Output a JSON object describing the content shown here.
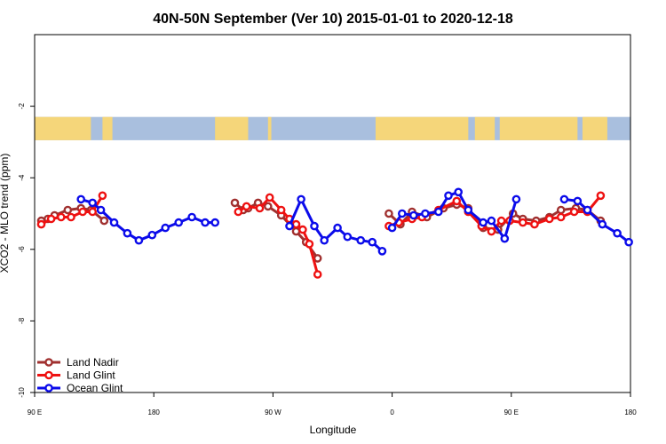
{
  "chart_data": {
    "type": "line",
    "title": "40N-50N September (Ver 10)   2015-01-01 to 2020-12-18",
    "xlabel": "Longitude",
    "ylabel": "XCO2 - MLO trend (ppm)",
    "xlim": [
      90,
      450
    ],
    "ylim": [
      -10,
      0
    ],
    "x_ticks": [
      {
        "value": 90,
        "label": "90 E"
      },
      {
        "value": 162,
        "label": "180"
      },
      {
        "value": 234,
        "label": "90 W"
      },
      {
        "value": 306,
        "label": "0"
      },
      {
        "value": 378,
        "label": "90 E"
      },
      {
        "value": 450,
        "label": "180"
      }
    ],
    "y_ticks": [
      {
        "value": -2,
        "label": "-2"
      },
      {
        "value": -4,
        "label": "-4"
      },
      {
        "value": -6,
        "label": "-6"
      },
      {
        "value": -8,
        "label": "-8"
      },
      {
        "value": -10,
        "label": "-10"
      }
    ],
    "map_band": {
      "y_top": -2.3,
      "y_bottom": -2.95,
      "land_color": "#f5d67a",
      "ocean_color": "#a9bfde"
    },
    "series": [
      {
        "name": "Land Nadir",
        "color": "#a0302f",
        "segments": [
          [
            [
              94,
              -5.2
            ],
            [
              98,
              -5.15
            ],
            [
              102,
              -5.05
            ],
            [
              110,
              -4.9
            ],
            [
              118,
              -4.85
            ],
            [
              124,
              -4.9
            ],
            [
              132,
              -5.2
            ]
          ],
          [
            [
              211,
              -4.7
            ],
            [
              216,
              -4.9
            ],
            [
              219,
              -4.85
            ],
            [
              225,
              -4.7
            ],
            [
              231,
              -4.8
            ],
            [
              239,
              -5.05
            ],
            [
              248,
              -5.5
            ],
            [
              254,
              -5.8
            ],
            [
              261,
              -6.25
            ]
          ],
          [
            [
              304,
              -5.0
            ],
            [
              311,
              -5.3
            ],
            [
              318,
              -4.95
            ],
            [
              327,
              -5.1
            ],
            [
              337,
              -4.85
            ],
            [
              345,
              -4.75
            ],
            [
              352,
              -4.85
            ],
            [
              361,
              -5.4
            ],
            [
              370,
              -5.45
            ],
            [
              379,
              -5.0
            ],
            [
              385,
              -5.15
            ],
            [
              393,
              -5.2
            ],
            [
              401,
              -5.1
            ],
            [
              408,
              -4.9
            ],
            [
              417,
              -4.85
            ],
            [
              424,
              -4.9
            ],
            [
              432,
              -5.2
            ]
          ]
        ]
      },
      {
        "name": "Land Glint",
        "color": "#ee1111",
        "segments": [
          [
            [
              94,
              -5.3
            ],
            [
              100,
              -5.15
            ],
            [
              106,
              -5.1
            ],
            [
              112,
              -5.1
            ],
            [
              119,
              -4.95
            ],
            [
              125,
              -4.95
            ],
            [
              131,
              -4.5
            ]
          ],
          [
            [
              213,
              -4.95
            ],
            [
              218,
              -4.8
            ],
            [
              226,
              -4.85
            ],
            [
              232,
              -4.55
            ],
            [
              239,
              -4.9
            ],
            [
              244,
              -5.15
            ],
            [
              248,
              -5.3
            ],
            [
              252,
              -5.45
            ],
            [
              256,
              -5.85
            ],
            [
              261,
              -6.7
            ]
          ],
          [
            [
              304,
              -5.35
            ],
            [
              310,
              -5.25
            ],
            [
              318,
              -5.15
            ],
            [
              324,
              -5.1
            ],
            [
              334,
              -4.9
            ],
            [
              345,
              -4.65
            ],
            [
              352,
              -4.95
            ],
            [
              360,
              -5.35
            ],
            [
              366,
              -5.5
            ],
            [
              372,
              -5.2
            ],
            [
              377,
              -5.2
            ],
            [
              385,
              -5.25
            ],
            [
              392,
              -5.3
            ],
            [
              401,
              -5.15
            ],
            [
              408,
              -5.1
            ],
            [
              416,
              -4.95
            ],
            [
              424,
              -4.95
            ],
            [
              432,
              -4.5
            ]
          ]
        ]
      },
      {
        "name": "Ocean Glint",
        "color": "#0b0bea",
        "segments": [
          [
            [
              118,
              -4.6
            ],
            [
              125,
              -4.7
            ],
            [
              130,
              -4.9
            ],
            [
              138,
              -5.25
            ],
            [
              146,
              -5.55
            ],
            [
              153,
              -5.75
            ],
            [
              161,
              -5.6
            ],
            [
              169,
              -5.4
            ],
            [
              177,
              -5.25
            ],
            [
              185,
              -5.1
            ],
            [
              193,
              -5.25
            ],
            [
              199,
              -5.25
            ]
          ],
          [
            [
              244,
              -5.35
            ],
            [
              251,
              -4.6
            ],
            [
              259,
              -5.35
            ],
            [
              265,
              -5.75
            ],
            [
              273,
              -5.4
            ],
            [
              279,
              -5.65
            ],
            [
              287,
              -5.75
            ],
            [
              294,
              -5.8
            ],
            [
              300,
              -6.05
            ]
          ],
          [
            [
              306,
              -5.4
            ],
            [
              312,
              -5.0
            ],
            [
              319,
              -5.05
            ],
            [
              326,
              -5.0
            ],
            [
              334,
              -4.95
            ],
            [
              340,
              -4.5
            ],
            [
              346,
              -4.4
            ],
            [
              352,
              -4.9
            ],
            [
              361,
              -5.25
            ],
            [
              366,
              -5.2
            ],
            [
              374,
              -5.7
            ],
            [
              381,
              -4.6
            ]
          ],
          [
            [
              410,
              -4.6
            ],
            [
              418,
              -4.65
            ],
            [
              424,
              -4.9
            ],
            [
              433,
              -5.3
            ],
            [
              442,
              -5.55
            ],
            [
              449,
              -5.8
            ]
          ]
        ]
      }
    ],
    "legend": {
      "position": "bottom-left",
      "entries": [
        "Land Nadir",
        "Land Glint",
        "Ocean Glint"
      ]
    }
  }
}
